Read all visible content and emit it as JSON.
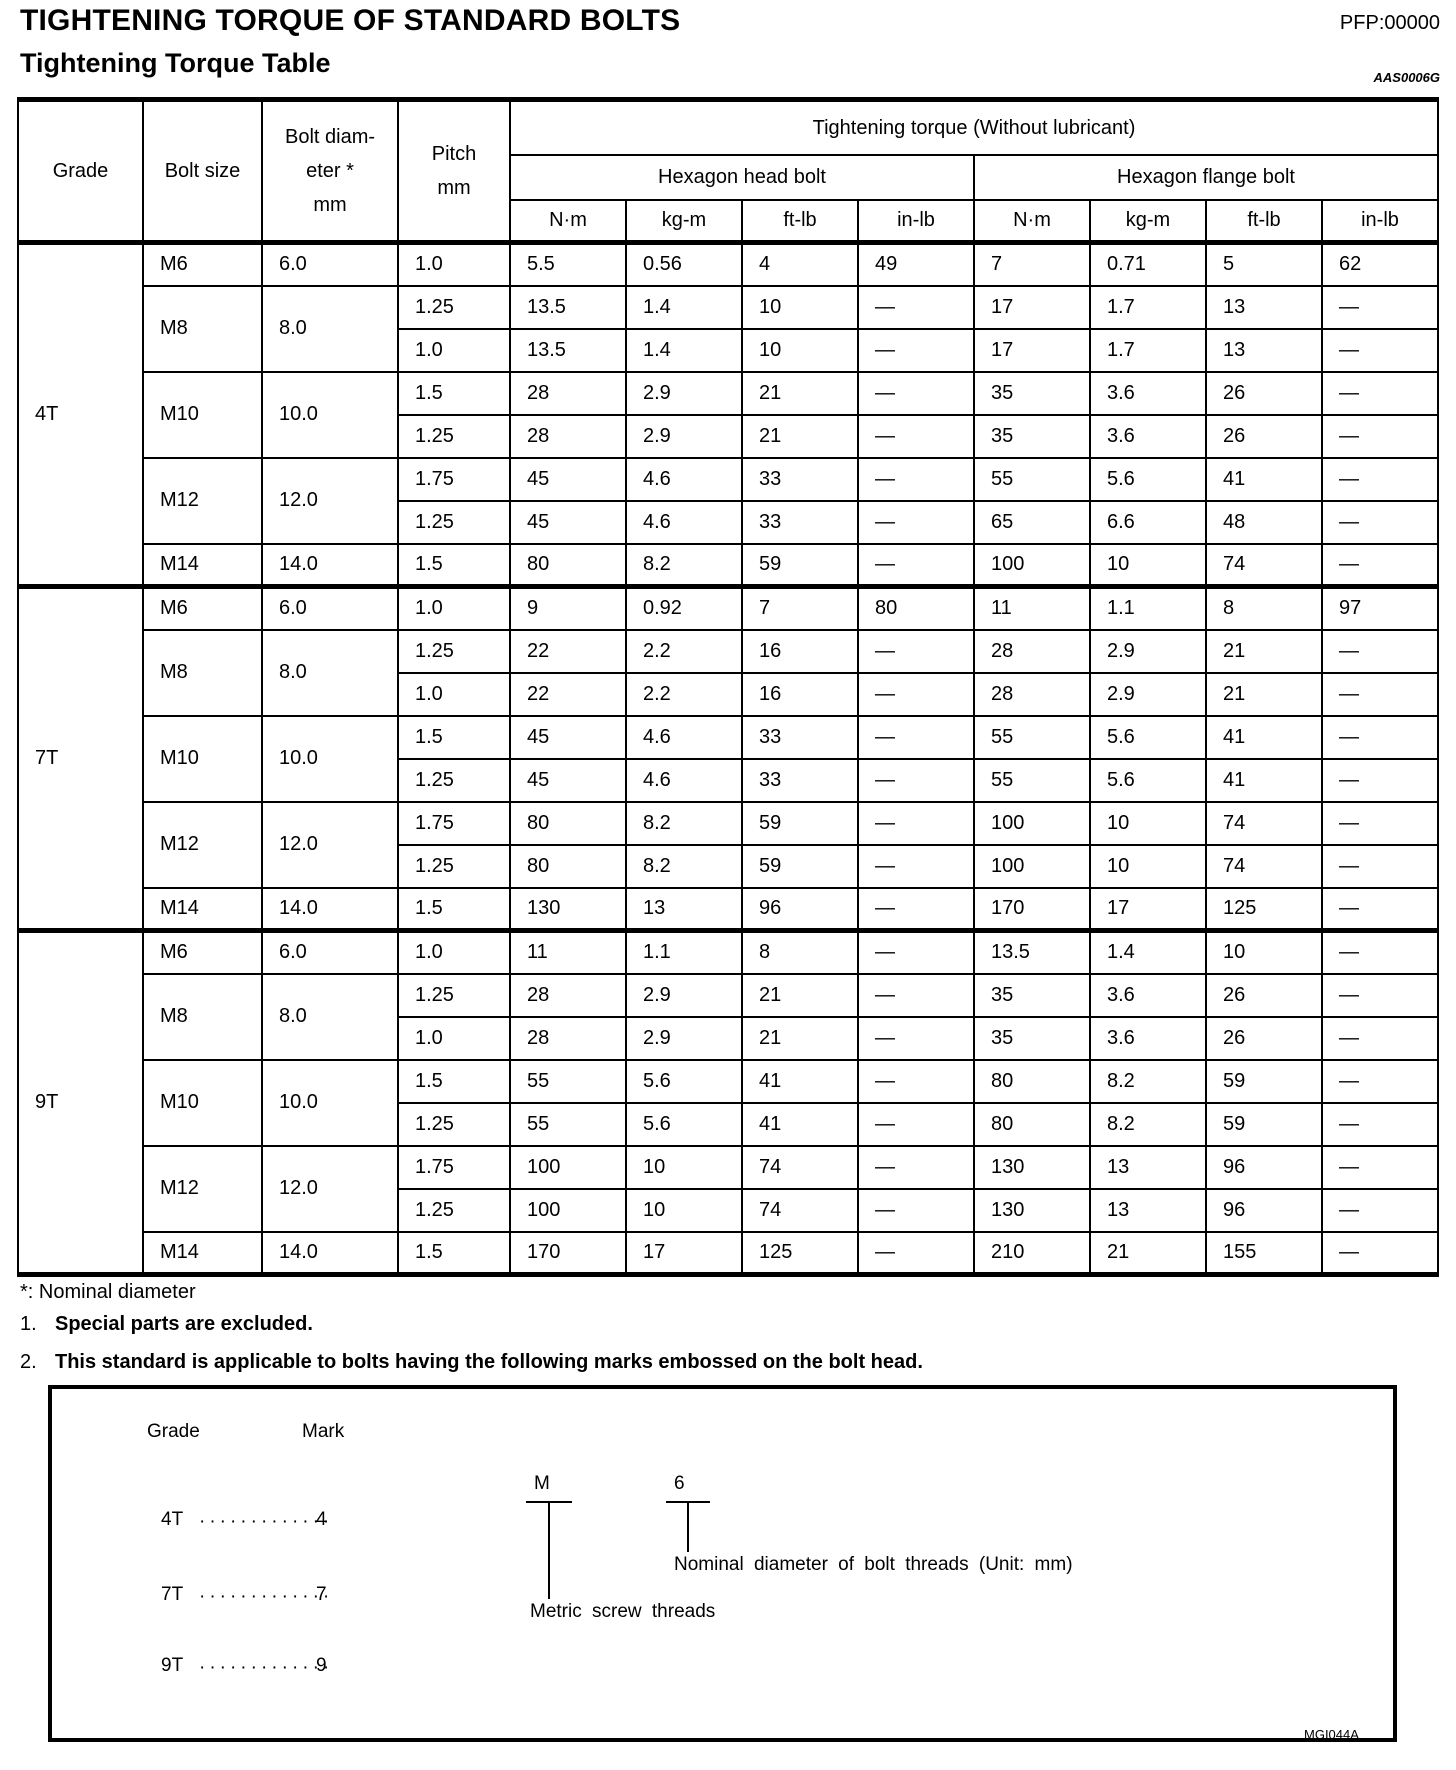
{
  "header": {
    "title": "TIGHTENING TORQUE OF STANDARD BOLTS",
    "pfp": "PFP:00000",
    "subtitle": "Tightening Torque Table",
    "doc_code": "AAS0006G"
  },
  "table": {
    "col_headers": {
      "grade": "Grade",
      "bolt_size": "Bolt size",
      "bolt_diameter_lines": [
        "Bolt diam-",
        "eter *",
        "mm"
      ],
      "pitch_lines": [
        "Pitch",
        "mm"
      ],
      "torque_title": "Tightening torque (Without lubricant)",
      "head_bolt": "Hexagon head bolt",
      "flange_bolt": "Hexagon flange bolt",
      "units": [
        "N·m",
        "kg-m",
        "ft-lb",
        "in-lb",
        "N·m",
        "kg-m",
        "ft-lb",
        "in-lb"
      ]
    },
    "sections": [
      {
        "grade": "4T",
        "groups": [
          {
            "size": "M6",
            "dia": "6.0",
            "rows": [
              {
                "pitch": "1.0",
                "vals": [
                  "5.5",
                  "0.56",
                  "4",
                  "49",
                  "7",
                  "0.71",
                  "5",
                  "62"
                ]
              }
            ]
          },
          {
            "size": "M8",
            "dia": "8.0",
            "rows": [
              {
                "pitch": "1.25",
                "vals": [
                  "13.5",
                  "1.4",
                  "10",
                  "—",
                  "17",
                  "1.7",
                  "13",
                  "—"
                ]
              },
              {
                "pitch": "1.0",
                "vals": [
                  "13.5",
                  "1.4",
                  "10",
                  "—",
                  "17",
                  "1.7",
                  "13",
                  "—"
                ]
              }
            ]
          },
          {
            "size": "M10",
            "dia": "10.0",
            "rows": [
              {
                "pitch": "1.5",
                "vals": [
                  "28",
                  "2.9",
                  "21",
                  "—",
                  "35",
                  "3.6",
                  "26",
                  "—"
                ]
              },
              {
                "pitch": "1.25",
                "vals": [
                  "28",
                  "2.9",
                  "21",
                  "—",
                  "35",
                  "3.6",
                  "26",
                  "—"
                ]
              }
            ]
          },
          {
            "size": "M12",
            "dia": "12.0",
            "rows": [
              {
                "pitch": "1.75",
                "vals": [
                  "45",
                  "4.6",
                  "33",
                  "—",
                  "55",
                  "5.6",
                  "41",
                  "—"
                ]
              },
              {
                "pitch": "1.25",
                "vals": [
                  "45",
                  "4.6",
                  "33",
                  "—",
                  "65",
                  "6.6",
                  "48",
                  "—"
                ]
              }
            ]
          },
          {
            "size": "M14",
            "dia": "14.0",
            "rows": [
              {
                "pitch": "1.5",
                "vals": [
                  "80",
                  "8.2",
                  "59",
                  "—",
                  "100",
                  "10",
                  "74",
                  "—"
                ]
              }
            ]
          }
        ]
      },
      {
        "grade": "7T",
        "groups": [
          {
            "size": "M6",
            "dia": "6.0",
            "rows": [
              {
                "pitch": "1.0",
                "vals": [
                  "9",
                  "0.92",
                  "7",
                  "80",
                  "11",
                  "1.1",
                  "8",
                  "97"
                ]
              }
            ]
          },
          {
            "size": "M8",
            "dia": "8.0",
            "rows": [
              {
                "pitch": "1.25",
                "vals": [
                  "22",
                  "2.2",
                  "16",
                  "—",
                  "28",
                  "2.9",
                  "21",
                  "—"
                ]
              },
              {
                "pitch": "1.0",
                "vals": [
                  "22",
                  "2.2",
                  "16",
                  "—",
                  "28",
                  "2.9",
                  "21",
                  "—"
                ]
              }
            ]
          },
          {
            "size": "M10",
            "dia": "10.0",
            "rows": [
              {
                "pitch": "1.5",
                "vals": [
                  "45",
                  "4.6",
                  "33",
                  "—",
                  "55",
                  "5.6",
                  "41",
                  "—"
                ]
              },
              {
                "pitch": "1.25",
                "vals": [
                  "45",
                  "4.6",
                  "33",
                  "—",
                  "55",
                  "5.6",
                  "41",
                  "—"
                ]
              }
            ]
          },
          {
            "size": "M12",
            "dia": "12.0",
            "rows": [
              {
                "pitch": "1.75",
                "vals": [
                  "80",
                  "8.2",
                  "59",
                  "—",
                  "100",
                  "10",
                  "74",
                  "—"
                ]
              },
              {
                "pitch": "1.25",
                "vals": [
                  "80",
                  "8.2",
                  "59",
                  "—",
                  "100",
                  "10",
                  "74",
                  "—"
                ]
              }
            ]
          },
          {
            "size": "M14",
            "dia": "14.0",
            "rows": [
              {
                "pitch": "1.5",
                "vals": [
                  "130",
                  "13",
                  "96",
                  "—",
                  "170",
                  "17",
                  "125",
                  "—"
                ]
              }
            ]
          }
        ]
      },
      {
        "grade": "9T",
        "groups": [
          {
            "size": "M6",
            "dia": "6.0",
            "rows": [
              {
                "pitch": "1.0",
                "vals": [
                  "11",
                  "1.1",
                  "8",
                  "—",
                  "13.5",
                  "1.4",
                  "10",
                  "—"
                ]
              }
            ]
          },
          {
            "size": "M8",
            "dia": "8.0",
            "rows": [
              {
                "pitch": "1.25",
                "vals": [
                  "28",
                  "2.9",
                  "21",
                  "—",
                  "35",
                  "3.6",
                  "26",
                  "—"
                ]
              },
              {
                "pitch": "1.0",
                "vals": [
                  "28",
                  "2.9",
                  "21",
                  "—",
                  "35",
                  "3.6",
                  "26",
                  "—"
                ]
              }
            ]
          },
          {
            "size": "M10",
            "dia": "10.0",
            "rows": [
              {
                "pitch": "1.5",
                "vals": [
                  "55",
                  "5.6",
                  "41",
                  "—",
                  "80",
                  "8.2",
                  "59",
                  "—"
                ]
              },
              {
                "pitch": "1.25",
                "vals": [
                  "55",
                  "5.6",
                  "41",
                  "—",
                  "80",
                  "8.2",
                  "59",
                  "—"
                ]
              }
            ]
          },
          {
            "size": "M12",
            "dia": "12.0",
            "rows": [
              {
                "pitch": "1.75",
                "vals": [
                  "100",
                  "10",
                  "74",
                  "—",
                  "130",
                  "13",
                  "96",
                  "—"
                ]
              },
              {
                "pitch": "1.25",
                "vals": [
                  "100",
                  "10",
                  "74",
                  "—",
                  "130",
                  "13",
                  "96",
                  "—"
                ]
              }
            ]
          },
          {
            "size": "M14",
            "dia": "14.0",
            "rows": [
              {
                "pitch": "1.5",
                "vals": [
                  "170",
                  "17",
                  "125",
                  "—",
                  "210",
                  "21",
                  "155",
                  "—"
                ]
              }
            ]
          }
        ]
      }
    ]
  },
  "notes": {
    "asterisk": "*: Nominal diameter",
    "items": [
      {
        "num": "1.",
        "text": "Special parts are excluded."
      },
      {
        "num": "2.",
        "text": "This standard is applicable to bolts having the following marks embossed on the bolt head."
      }
    ]
  },
  "mark_box": {
    "grade_label": "Grade",
    "mark_label": "Mark",
    "dots": "·············",
    "rows": [
      {
        "grade": "4T",
        "mark": "4"
      },
      {
        "grade": "7T",
        "mark": "7"
      },
      {
        "grade": "9T",
        "mark": "9"
      }
    ],
    "bolt_code_prefix": "M",
    "bolt_code_number": "6",
    "metric_label": "Metric screw threads",
    "nominal_label": "Nominal diameter of bolt threads (Unit: mm)",
    "figure_code": "MGI044A"
  },
  "colors": {
    "ink": "#000000",
    "paper": "#ffffff"
  }
}
